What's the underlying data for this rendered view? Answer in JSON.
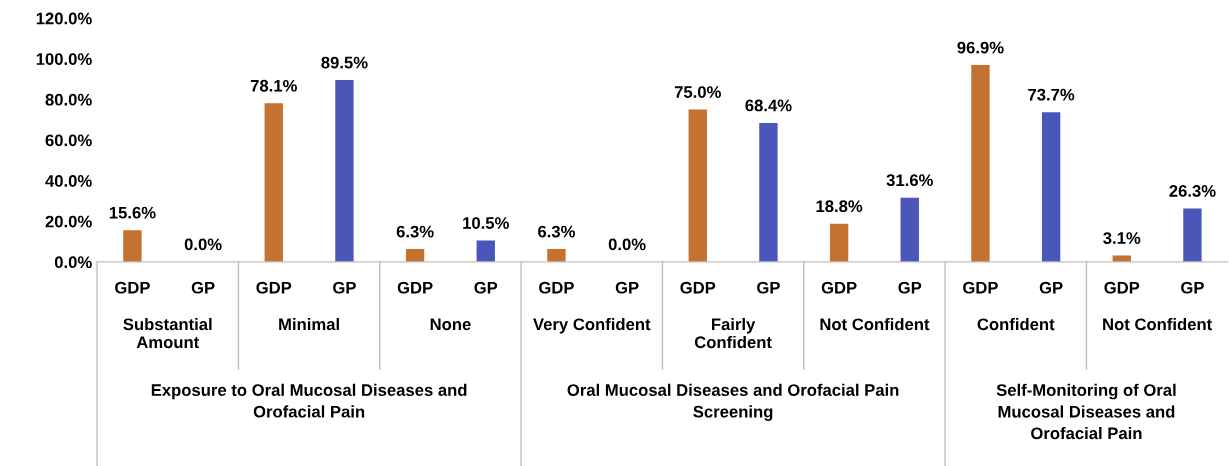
{
  "chart_data": {
    "type": "bar",
    "categories": [
      "GDP",
      "GP",
      "GDP",
      "GP",
      "GDP",
      "GP",
      "GDP",
      "GP",
      "GDP",
      "GP",
      "GDP",
      "GP",
      "GDP",
      "GP",
      "GDP",
      "GP"
    ],
    "values": [
      15.6,
      0.0,
      78.1,
      89.5,
      6.3,
      10.5,
      6.3,
      0.0,
      75.0,
      68.4,
      18.8,
      31.6,
      96.9,
      73.7,
      3.1,
      26.3
    ],
    "value_labels": [
      "15.6%",
      "0.0%",
      "78.1%",
      "89.5%",
      "6.3%",
      "10.5%",
      "6.3%",
      "0.0%",
      "75.0%",
      "68.4%",
      "18.8%",
      "31.6%",
      "96.9%",
      "73.7%",
      "3.1%",
      "26.3%"
    ],
    "colors": [
      "#c5712f",
      "#4a56b8",
      "#c5712f",
      "#4a56b8",
      "#c5712f",
      "#4a56b8",
      "#c5712f",
      "#4a56b8",
      "#c5712f",
      "#4a56b8",
      "#c5712f",
      "#4a56b8",
      "#c5712f",
      "#4a56b8",
      "#c5712f",
      "#4a56b8"
    ],
    "ylim": [
      0,
      120
    ],
    "yticks": [
      {
        "value": 0,
        "label": "0.0%"
      },
      {
        "value": 20,
        "label": "20.0%"
      },
      {
        "value": 40,
        "label": "40.0%"
      },
      {
        "value": 60,
        "label": "60.0%"
      },
      {
        "value": 80,
        "label": "80.0%"
      },
      {
        "value": 100,
        "label": "100.0%"
      },
      {
        "value": 120,
        "label": "120.0%"
      }
    ],
    "annotations": [
      "Substantial\nAmount",
      "Minimal",
      "None",
      "Very Confident",
      "Fairly\nConfident",
      "Not Confident",
      "Confident",
      "Not Confident",
      "Exposure to Oral Mucosal Diseases and\nOrofacial Pain",
      "Oral Mucosal Diseases and Orofacial Pain\nScreening",
      "Self-Monitoring of Oral\nMucosal Diseases and\nOrofacial Pain"
    ],
    "grid": false
  }
}
